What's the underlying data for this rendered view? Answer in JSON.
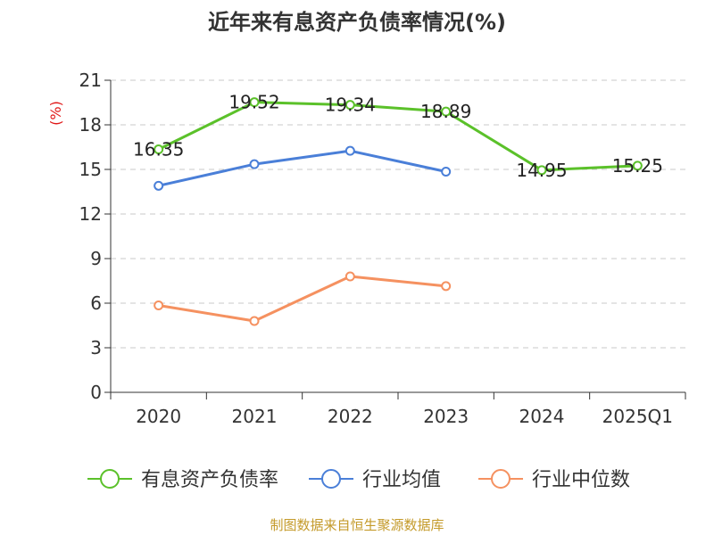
{
  "chart_data": {
    "type": "line",
    "title": "近年来有息资产负债率情况(%)",
    "ylabel": "(%)",
    "xlabel": "",
    "categories": [
      "2020",
      "2021",
      "2022",
      "2023",
      "2024",
      "2025Q1"
    ],
    "ylim": [
      0,
      21
    ],
    "yticks": [
      0,
      3,
      6,
      9,
      12,
      15,
      18,
      21
    ],
    "grid": true,
    "legend": "bottom",
    "series": [
      {
        "name": "有息资产负债率",
        "color": "#5bc12a",
        "values": [
          16.35,
          19.52,
          19.34,
          18.89,
          14.95,
          15.25
        ],
        "labels": [
          "16.35",
          "19.52",
          "19.34",
          "18.89",
          "14.95",
          "15.25"
        ]
      },
      {
        "name": "行业均值",
        "color": "#4a7fd8",
        "values": [
          13.9,
          15.35,
          16.25,
          14.85,
          null,
          null
        ]
      },
      {
        "name": "行业中位数",
        "color": "#f59160",
        "values": [
          5.85,
          4.8,
          7.8,
          7.15,
          null,
          null
        ]
      }
    ]
  },
  "source": {
    "text": "制图数据来自恒生聚源数据库",
    "color": "#c49a2a"
  }
}
